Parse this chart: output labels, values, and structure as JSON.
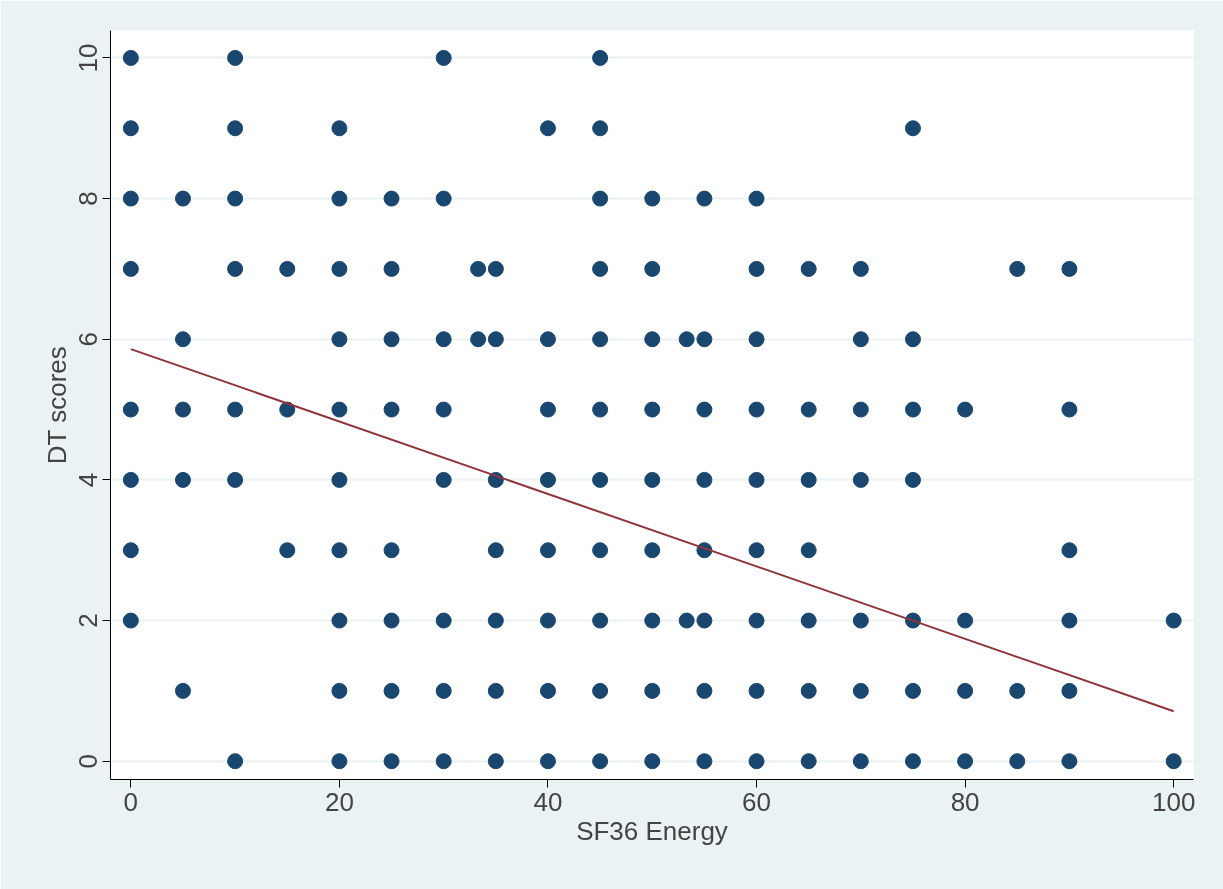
{
  "chart_data": {
    "type": "scatter",
    "xlabel": "SF36 Energy",
    "ylabel": "DT scores",
    "xlim": [
      -1.95,
      101.9
    ],
    "ylim": [
      -0.26,
      10.39
    ],
    "xticks": [
      0,
      20,
      40,
      60,
      80,
      100
    ],
    "yticks": [
      0,
      2,
      4,
      6,
      8,
      10
    ],
    "grid": "y",
    "marker": "circle",
    "series": [
      {
        "color": "#1a476f",
        "x": [
          0,
          10,
          30,
          45,
          0,
          10,
          20,
          40,
          45,
          75,
          0,
          5,
          10,
          20,
          25,
          30,
          45,
          50,
          55,
          60,
          0,
          10,
          15,
          20,
          25,
          33.3,
          35,
          45,
          50,
          60,
          65,
          70,
          85,
          90,
          5,
          20,
          25,
          30,
          33.3,
          35,
          40,
          45,
          50,
          53.3,
          55,
          60,
          70,
          75,
          0,
          5,
          10,
          15,
          20,
          25,
          30,
          40,
          45,
          50,
          55,
          60,
          65,
          70,
          75,
          80,
          90,
          0,
          5,
          10,
          20,
          30,
          35,
          40,
          45,
          50,
          55,
          60,
          65,
          70,
          75,
          0,
          15,
          20,
          25,
          35,
          40,
          45,
          50,
          55,
          60,
          65,
          90,
          0,
          20,
          25,
          30,
          35,
          40,
          45,
          50,
          53.3,
          55,
          60,
          65,
          70,
          75,
          80,
          90,
          100,
          5,
          20,
          25,
          30,
          35,
          40,
          45,
          50,
          55,
          60,
          65,
          70,
          75,
          80,
          85,
          90,
          10,
          20,
          25,
          30,
          35,
          40,
          45,
          50,
          55,
          60,
          65,
          70,
          75,
          80,
          85,
          90,
          100
        ],
        "values": [
          10,
          10,
          10,
          10,
          9,
          9,
          9,
          9,
          9,
          9,
          8,
          8,
          8,
          8,
          8,
          8,
          8,
          8,
          8,
          8,
          7,
          7,
          7,
          7,
          7,
          7,
          7,
          7,
          7,
          7,
          7,
          7,
          7,
          7,
          6,
          6,
          6,
          6,
          6,
          6,
          6,
          6,
          6,
          6,
          6,
          6,
          6,
          6,
          5,
          5,
          5,
          5,
          5,
          5,
          5,
          5,
          5,
          5,
          5,
          5,
          5,
          5,
          5,
          5,
          5,
          4,
          4,
          4,
          4,
          4,
          4,
          4,
          4,
          4,
          4,
          4,
          4,
          4,
          4,
          3,
          3,
          3,
          3,
          3,
          3,
          3,
          3,
          3,
          3,
          3,
          3,
          2,
          2,
          2,
          2,
          2,
          2,
          2,
          2,
          2,
          2,
          2,
          2,
          2,
          2,
          2,
          2,
          2,
          1,
          1,
          1,
          1,
          1,
          1,
          1,
          1,
          1,
          1,
          1,
          1,
          1,
          1,
          1,
          1,
          0,
          0,
          0,
          0,
          0,
          0,
          0,
          0,
          0,
          0,
          0,
          0,
          0,
          0,
          0,
          0,
          0
        ]
      },
      {
        "type": "line",
        "color": "#90353b",
        "marker": "none",
        "line_style": "solid",
        "x": [
          0,
          100
        ],
        "values": [
          5.86,
          0.71
        ]
      }
    ]
  }
}
